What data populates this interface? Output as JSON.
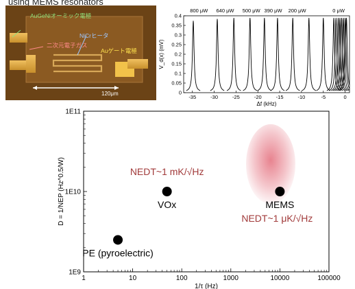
{
  "header": {
    "caption": "using MEMS resonators"
  },
  "photo": {
    "labels": {
      "ohmic": "AuGeNiオーミック電極",
      "nicr": "NiCrヒータ",
      "twodeg": "二次元電子ガス",
      "gate": "Auゲート電極"
    },
    "scale": "120μm",
    "colors": {
      "ohmic": "#8fe07a",
      "nicr": "#9ec7ff",
      "twodeg": "#ff8a8a",
      "gate": "#ffe24d"
    }
  },
  "chart_data": [
    {
      "type": "line",
      "xlabel": "Δf (kHz)",
      "ylabel": "V_d(x) (mV)",
      "xlim": [
        -37,
        1
      ],
      "ylim": [
        0,
        0.4
      ],
      "x_ticks": [
        "-35",
        "-30",
        "-25",
        "-20",
        "-15",
        "-10",
        "-5",
        "0"
      ],
      "y_ticks": [
        "0",
        "0.05",
        "0.1",
        "0.15",
        "0.2",
        "0.25",
        "0.3",
        "0.35",
        "0.4"
      ],
      "power_labels": [
        {
          "text": "800 μW",
          "x": -33.5
        },
        {
          "text": "640 μW",
          "x": -27.5
        },
        {
          "text": "500 μW",
          "x": -21.5
        },
        {
          "text": "390 μW",
          "x": -16.5
        },
        {
          "text": "200 μW",
          "x": -11.0
        },
        {
          "text": "0 μW",
          "x": -1.5
        }
      ],
      "peaks": [
        {
          "x": -34.8,
          "height": 0.37
        },
        {
          "x": -29.3,
          "height": 0.38
        },
        {
          "x": -25.5,
          "height": 0.385
        },
        {
          "x": -21.8,
          "height": 0.385
        },
        {
          "x": -18.5,
          "height": 0.385
        },
        {
          "x": -15.5,
          "height": 0.385
        },
        {
          "x": -12.0,
          "height": 0.385
        },
        {
          "x": -8.3,
          "height": 0.385
        },
        {
          "x": -5.0,
          "height": 0.385
        },
        {
          "x": -2.6,
          "height": 0.385
        },
        {
          "x": -2.1,
          "height": 0.385
        },
        {
          "x": -1.6,
          "height": 0.385
        },
        {
          "x": -1.2,
          "height": 0.385
        },
        {
          "x": -0.8,
          "height": 0.385
        },
        {
          "x": -0.4,
          "height": 0.385
        },
        {
          "x": 0.0,
          "height": 0.385
        },
        {
          "x": 0.3,
          "height": 0.385
        }
      ]
    },
    {
      "type": "scatter",
      "xlabel": "1/τ (Hz)",
      "ylabel": "D = 1/NEP (Hz^0.5/W)",
      "x_scale": "log",
      "y_scale": "log",
      "xlim": [
        1,
        100000
      ],
      "ylim": [
        1000000000,
        100000000000
      ],
      "x_ticks": [
        "1",
        "10",
        "100",
        "1000",
        "10000",
        "100000"
      ],
      "y_ticks": [
        "1E9",
        "1E10",
        "1E11"
      ],
      "points": [
        {
          "label": "PE (pyroelectric)",
          "x": 5,
          "y": 2500000000
        },
        {
          "label": "VOx",
          "x": 50,
          "y": 10000000000
        },
        {
          "label": "MEMS",
          "x": 10000,
          "y": 10000000000
        }
      ],
      "annotations": [
        {
          "text": "NEDT~1 mK/√Hz",
          "color": "#a13a3a"
        },
        {
          "text": "NEDT~1 μK/√Hz",
          "color": "#a13a3a"
        }
      ],
      "highlight_color": "#e05a6a"
    }
  ]
}
